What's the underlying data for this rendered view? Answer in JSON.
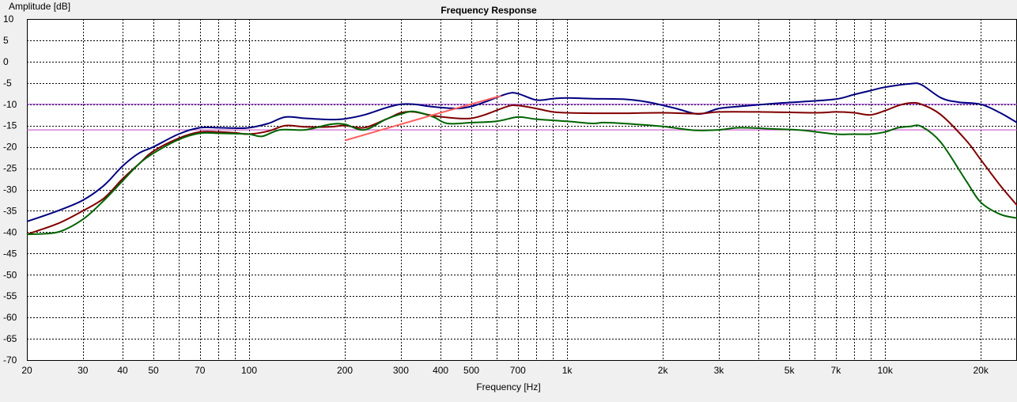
{
  "chart_data": {
    "type": "line",
    "title": "Frequency Response",
    "xlabel": "Frequency [Hz]",
    "ylabel": "Amplitude [dB]",
    "x_scale": "log",
    "xlim": [
      20,
      26000
    ],
    "ylim": [
      -70,
      10
    ],
    "y_ticks": [
      10,
      5,
      0,
      -5,
      -10,
      -15,
      -20,
      -25,
      -30,
      -35,
      -40,
      -45,
      -50,
      -55,
      -60,
      -65,
      -70
    ],
    "x_tick_labels": [
      {
        "value": 20,
        "label": "20"
      },
      {
        "value": 30,
        "label": "30"
      },
      {
        "value": 40,
        "label": "40"
      },
      {
        "value": 50,
        "label": "50"
      },
      {
        "value": 70,
        "label": "70"
      },
      {
        "value": 100,
        "label": "100"
      },
      {
        "value": 200,
        "label": "200"
      },
      {
        "value": 300,
        "label": "300"
      },
      {
        "value": 400,
        "label": "400"
      },
      {
        "value": 500,
        "label": "500"
      },
      {
        "value": 700,
        "label": "700"
      },
      {
        "value": 1000,
        "label": "1k"
      },
      {
        "value": 2000,
        "label": "2k"
      },
      {
        "value": 3000,
        "label": "3k"
      },
      {
        "value": 5000,
        "label": "5k"
      },
      {
        "value": 7000,
        "label": "7k"
      },
      {
        "value": 10000,
        "label": "10k"
      },
      {
        "value": 20000,
        "label": "20k"
      }
    ],
    "minor_x_grid": [
      20,
      30,
      40,
      50,
      60,
      70,
      80,
      90,
      100,
      200,
      300,
      400,
      500,
      600,
      700,
      800,
      900,
      1000,
      2000,
      3000,
      4000,
      5000,
      6000,
      7000,
      8000,
      9000,
      10000,
      20000
    ],
    "grid": true,
    "reference_lines": [
      {
        "y": -10,
        "color": "#a040e0"
      },
      {
        "y": -16,
        "color": "#c040c0"
      }
    ],
    "series": [
      {
        "color": "#000080",
        "points": [
          [
            20,
            -37.5
          ],
          [
            25,
            -35
          ],
          [
            30,
            -32.5
          ],
          [
            35,
            -29
          ],
          [
            40,
            -24.5
          ],
          [
            45,
            -21.5
          ],
          [
            50,
            -20
          ],
          [
            60,
            -17
          ],
          [
            70,
            -15.5
          ],
          [
            80,
            -15.5
          ],
          [
            90,
            -15.6
          ],
          [
            100,
            -15.5
          ],
          [
            115,
            -14.5
          ],
          [
            130,
            -13
          ],
          [
            150,
            -13.3
          ],
          [
            180,
            -13.6
          ],
          [
            200,
            -13.4
          ],
          [
            230,
            -12.5
          ],
          [
            270,
            -10.8
          ],
          [
            300,
            -10
          ],
          [
            330,
            -10
          ],
          [
            380,
            -10.6
          ],
          [
            450,
            -11
          ],
          [
            500,
            -10.5
          ],
          [
            550,
            -9.5
          ],
          [
            650,
            -7.5
          ],
          [
            700,
            -7.5
          ],
          [
            800,
            -9
          ],
          [
            900,
            -8.7
          ],
          [
            1000,
            -8.5
          ],
          [
            1200,
            -8.7
          ],
          [
            1500,
            -8.8
          ],
          [
            1800,
            -9.5
          ],
          [
            2200,
            -11
          ],
          [
            2600,
            -12.3
          ],
          [
            3000,
            -11
          ],
          [
            3500,
            -10.5
          ],
          [
            4500,
            -9.8
          ],
          [
            5500,
            -9.4
          ],
          [
            7000,
            -8.8
          ],
          [
            8000,
            -7.7
          ],
          [
            9000,
            -6.8
          ],
          [
            10000,
            -6
          ],
          [
            12000,
            -5.2
          ],
          [
            13000,
            -5.4
          ],
          [
            15000,
            -8.5
          ],
          [
            17000,
            -9.5
          ],
          [
            20000,
            -10
          ],
          [
            23000,
            -12
          ],
          [
            26000,
            -14.3
          ]
        ]
      },
      {
        "color": "#800000",
        "points": [
          [
            20,
            -40.5
          ],
          [
            25,
            -38
          ],
          [
            30,
            -35
          ],
          [
            35,
            -32
          ],
          [
            40,
            -27.5
          ],
          [
            45,
            -24
          ],
          [
            50,
            -21
          ],
          [
            60,
            -18
          ],
          [
            70,
            -16.5
          ],
          [
            80,
            -16.5
          ],
          [
            90,
            -16.7
          ],
          [
            100,
            -17
          ],
          [
            115,
            -16.3
          ],
          [
            130,
            -15
          ],
          [
            150,
            -15.3
          ],
          [
            180,
            -15.3
          ],
          [
            200,
            -15
          ],
          [
            230,
            -15.5
          ],
          [
            270,
            -13.5
          ],
          [
            300,
            -12
          ],
          [
            330,
            -11.8
          ],
          [
            380,
            -12.7
          ],
          [
            450,
            -13.3
          ],
          [
            500,
            -13.3
          ],
          [
            550,
            -12.5
          ],
          [
            650,
            -10.5
          ],
          [
            700,
            -10.3
          ],
          [
            800,
            -11
          ],
          [
            900,
            -11.8
          ],
          [
            1000,
            -12
          ],
          [
            1200,
            -12.1
          ],
          [
            1500,
            -12.1
          ],
          [
            2000,
            -12
          ],
          [
            2600,
            -12.2
          ],
          [
            3000,
            -11.8
          ],
          [
            4000,
            -11.8
          ],
          [
            6000,
            -12
          ],
          [
            7000,
            -11.8
          ],
          [
            8000,
            -12
          ],
          [
            9000,
            -12.5
          ],
          [
            10000,
            -11.5
          ],
          [
            11000,
            -10.3
          ],
          [
            12000,
            -9.7
          ],
          [
            13000,
            -10
          ],
          [
            15000,
            -12.5
          ],
          [
            18000,
            -18.5
          ],
          [
            20000,
            -23
          ],
          [
            23000,
            -29
          ],
          [
            26000,
            -33.7
          ]
        ]
      },
      {
        "color": "#006400",
        "points": [
          [
            20,
            -40.5
          ],
          [
            25,
            -40
          ],
          [
            30,
            -37
          ],
          [
            35,
            -32.5
          ],
          [
            40,
            -28
          ],
          [
            45,
            -24
          ],
          [
            50,
            -21.5
          ],
          [
            60,
            -18.3
          ],
          [
            70,
            -16.8
          ],
          [
            80,
            -16.8
          ],
          [
            90,
            -16.9
          ],
          [
            100,
            -17
          ],
          [
            110,
            -17.5
          ],
          [
            125,
            -16
          ],
          [
            150,
            -16
          ],
          [
            180,
            -14.7
          ],
          [
            200,
            -14.7
          ],
          [
            230,
            -16
          ],
          [
            270,
            -13.5
          ],
          [
            300,
            -12.3
          ],
          [
            330,
            -11.7
          ],
          [
            380,
            -13
          ],
          [
            420,
            -14.5
          ],
          [
            500,
            -14.3
          ],
          [
            600,
            -14
          ],
          [
            700,
            -13
          ],
          [
            800,
            -13.5
          ],
          [
            1000,
            -14
          ],
          [
            1200,
            -14.5
          ],
          [
            1300,
            -14.3
          ],
          [
            1500,
            -14.5
          ],
          [
            2000,
            -15.2
          ],
          [
            2500,
            -16.1
          ],
          [
            3000,
            -16
          ],
          [
            3500,
            -15.5
          ],
          [
            4500,
            -15.8
          ],
          [
            5500,
            -16.1
          ],
          [
            7000,
            -17
          ],
          [
            8000,
            -17
          ],
          [
            9000,
            -17
          ],
          [
            10000,
            -16.5
          ],
          [
            11000,
            -15.5
          ],
          [
            12000,
            -15.2
          ],
          [
            13000,
            -15.2
          ],
          [
            15000,
            -19
          ],
          [
            18000,
            -28
          ],
          [
            20000,
            -33
          ],
          [
            23000,
            -35.8
          ],
          [
            26000,
            -36.7
          ]
        ]
      },
      {
        "color": "#ff6060",
        "points": [
          [
            200,
            -18.5
          ],
          [
            400,
            -12
          ],
          [
            620,
            -8
          ]
        ]
      }
    ]
  }
}
